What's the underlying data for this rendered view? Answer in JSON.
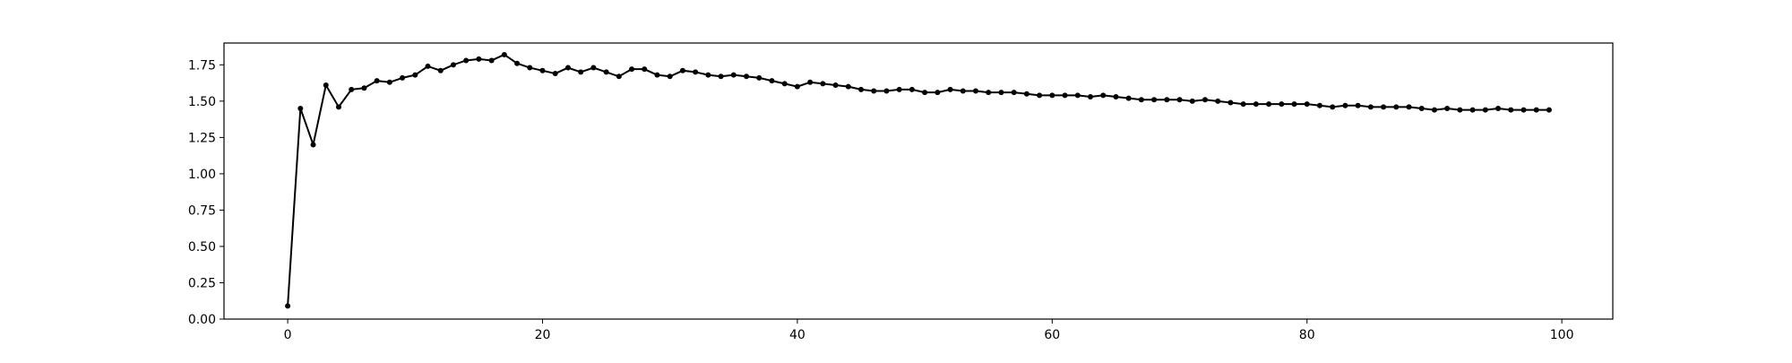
{
  "chart_data": {
    "type": "line",
    "title": "",
    "xlabel": "",
    "ylabel": "",
    "xlim": [
      -5,
      104
    ],
    "ylim": [
      0,
      1.9
    ],
    "grid": false,
    "legend": "none",
    "x_ticks": [
      0,
      20,
      40,
      60,
      80,
      100
    ],
    "x_tick_labels": [
      "0",
      "20",
      "40",
      "60",
      "80",
      "100"
    ],
    "y_ticks": [
      0,
      0.25,
      0.5,
      0.75,
      1.0,
      1.25,
      1.5,
      1.75
    ],
    "y_tick_labels": [
      "0.00",
      "0.25",
      "0.50",
      "0.75",
      "1.00",
      "1.25",
      "1.50",
      "1.75"
    ],
    "line_color": "#000000",
    "series": [
      {
        "x": [
          0,
          1,
          2,
          3,
          4,
          5,
          6,
          7,
          8,
          9,
          10,
          11,
          12,
          13,
          14,
          15,
          16,
          17,
          18,
          19,
          20,
          21,
          22,
          23,
          24,
          25,
          26,
          27,
          28,
          29,
          30,
          31,
          32,
          33,
          34,
          35,
          36,
          37,
          38,
          39,
          40,
          41,
          42,
          43,
          44,
          45,
          46,
          47,
          48,
          49,
          50,
          51,
          52,
          53,
          54,
          55,
          56,
          57,
          58,
          59,
          60,
          61,
          62,
          63,
          64,
          65,
          66,
          67,
          68,
          69,
          70,
          71,
          72,
          73,
          74,
          75,
          76,
          77,
          78,
          79,
          80,
          81,
          82,
          83,
          84,
          85,
          86,
          87,
          88,
          89,
          90,
          91,
          92,
          93,
          94,
          95,
          96,
          97,
          98,
          99
        ],
        "y": [
          0.09,
          1.45,
          1.2,
          1.61,
          1.46,
          1.58,
          1.59,
          1.64,
          1.63,
          1.66,
          1.68,
          1.74,
          1.71,
          1.75,
          1.78,
          1.79,
          1.78,
          1.82,
          1.76,
          1.73,
          1.71,
          1.69,
          1.73,
          1.7,
          1.73,
          1.7,
          1.67,
          1.72,
          1.72,
          1.68,
          1.67,
          1.71,
          1.7,
          1.68,
          1.67,
          1.68,
          1.67,
          1.66,
          1.64,
          1.62,
          1.6,
          1.63,
          1.62,
          1.61,
          1.6,
          1.58,
          1.57,
          1.57,
          1.58,
          1.58,
          1.56,
          1.56,
          1.58,
          1.57,
          1.57,
          1.56,
          1.56,
          1.56,
          1.55,
          1.54,
          1.54,
          1.54,
          1.54,
          1.53,
          1.54,
          1.53,
          1.52,
          1.51,
          1.51,
          1.51,
          1.51,
          1.5,
          1.51,
          1.5,
          1.49,
          1.48,
          1.48,
          1.48,
          1.48,
          1.48,
          1.48,
          1.47,
          1.46,
          1.47,
          1.47,
          1.46,
          1.46,
          1.46,
          1.46,
          1.45,
          1.44,
          1.45,
          1.44,
          1.44,
          1.44,
          1.45,
          1.44,
          1.44,
          1.44,
          1.44
        ]
      }
    ]
  }
}
